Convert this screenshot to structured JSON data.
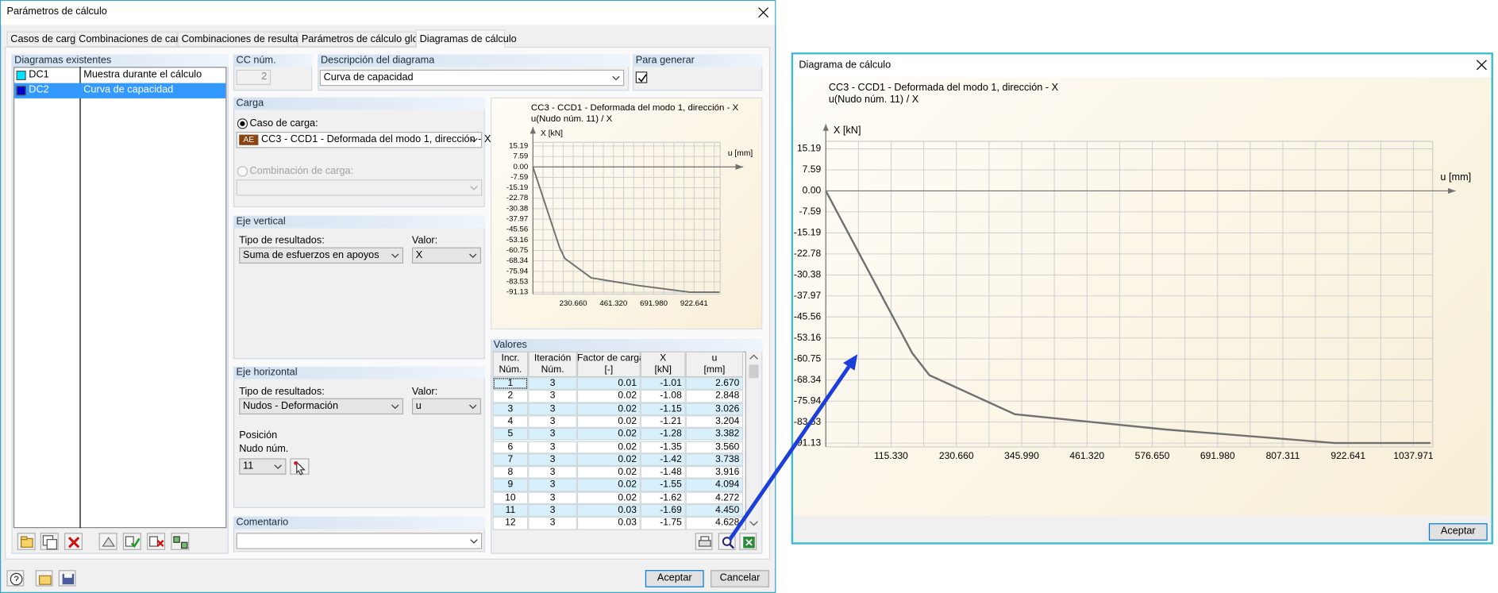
{
  "dialog": {
    "title": "Parámetros de cálculo",
    "tabs": [
      "Casos de carga",
      "Combinaciones de carga",
      "Combinaciones de resultados",
      "Parámetros de cálculo global",
      "Diagramas de cálculo"
    ]
  },
  "existing": {
    "label": "Diagramas existentes",
    "items": [
      {
        "id": "DC1",
        "name": "Muestra durante el cálculo",
        "color": "#00e5ff"
      },
      {
        "id": "DC2",
        "name": "Curva de capacidad",
        "color": "#0000cc"
      }
    ]
  },
  "cc_num": {
    "label": "CC núm.",
    "value": "2"
  },
  "description": {
    "label": "Descripción del diagrama",
    "value": "Curva de capacidad"
  },
  "generate": {
    "label": "Para generar"
  },
  "load": {
    "label": "Carga",
    "case_label": "Caso de carga:",
    "case_badge": "AE",
    "case_value": "CC3 - CCD1 - Deformada del modo 1, dirección - X",
    "combo_label": "Combinación de carga:"
  },
  "vertical": {
    "label": "Eje vertical",
    "type_label": "Tipo de resultados:",
    "type_value": "Suma de esfuerzos en apoyos",
    "value_label": "Valor:",
    "value": "X"
  },
  "horizontal": {
    "label": "Eje horizontal",
    "type_label": "Tipo de resultados:",
    "type_value": "Nudos - Deformación",
    "value_label": "Valor:",
    "value": "u",
    "position_label": "Posición",
    "node_label": "Nudo núm.",
    "node_value": "11"
  },
  "comment": {
    "label": "Comentario"
  },
  "values_table": {
    "label": "Valores",
    "headers": [
      [
        "Incr.",
        "Núm."
      ],
      [
        "Iteración",
        "Núm."
      ],
      [
        "Factor de carga",
        "[-]"
      ],
      [
        "X",
        "[kN]"
      ],
      [
        "u",
        "[mm]"
      ]
    ],
    "rows": [
      [
        "1",
        "3",
        "0.01",
        "-1.01",
        "2.670"
      ],
      [
        "2",
        "3",
        "0.02",
        "-1.08",
        "2.848"
      ],
      [
        "3",
        "3",
        "0.02",
        "-1.15",
        "3.026"
      ],
      [
        "4",
        "3",
        "0.02",
        "-1.21",
        "3.204"
      ],
      [
        "5",
        "3",
        "0.02",
        "-1.28",
        "3.382"
      ],
      [
        "6",
        "3",
        "0.02",
        "-1.35",
        "3.560"
      ],
      [
        "7",
        "3",
        "0.02",
        "-1.42",
        "3.738"
      ],
      [
        "8",
        "3",
        "0.02",
        "-1.48",
        "3.916"
      ],
      [
        "9",
        "3",
        "0.02",
        "-1.55",
        "4.094"
      ],
      [
        "10",
        "3",
        "0.02",
        "-1.62",
        "4.272"
      ],
      [
        "11",
        "3",
        "0.03",
        "-1.69",
        "4.450"
      ],
      [
        "12",
        "3",
        "0.03",
        "-1.75",
        "4.628"
      ]
    ]
  },
  "buttons": {
    "ok": "Aceptar",
    "cancel": "Cancelar"
  },
  "diagram_window": {
    "title": "Diagrama de cálculo",
    "ok": "Aceptar"
  },
  "chart_data": {
    "type": "line",
    "title": "CC3 - CCD1 - Deformada del modo 1, dirección - X",
    "subtitle": "u(Nudo núm. 11) / X",
    "ylabel": "X [kN]",
    "xlabel": "u [mm]",
    "x": [
      0,
      152.6,
      183,
      334,
      600,
      899,
      1068
    ],
    "values": [
      0,
      -58.6,
      -66.6,
      -80.7,
      -86.2,
      -91.1,
      -91.1
    ],
    "color": "#707070",
    "xlim": [
      0,
      1072
    ],
    "ylim": [
      -92.5,
      17.9
    ],
    "xticks": [
      {
        "value": 115.33,
        "label": "115.330"
      },
      {
        "value": 230.66,
        "label": "230.660"
      },
      {
        "value": 345.99,
        "label": "345.990"
      },
      {
        "value": 461.32,
        "label": "461.320"
      },
      {
        "value": 576.65,
        "label": "576.650"
      },
      {
        "value": 691.98,
        "label": "691.980"
      },
      807.311,
      922.641,
      1037.971
    ],
    "yticks": [
      15.19,
      7.59,
      {
        "value": 0,
        "label": "0.00"
      },
      -7.59,
      -15.19,
      -22.78,
      -30.38,
      -37.97,
      -45.56,
      -53.16,
      -60.75,
      -68.34,
      -75.94,
      -83.53,
      -91.13
    ],
    "grid": true
  }
}
